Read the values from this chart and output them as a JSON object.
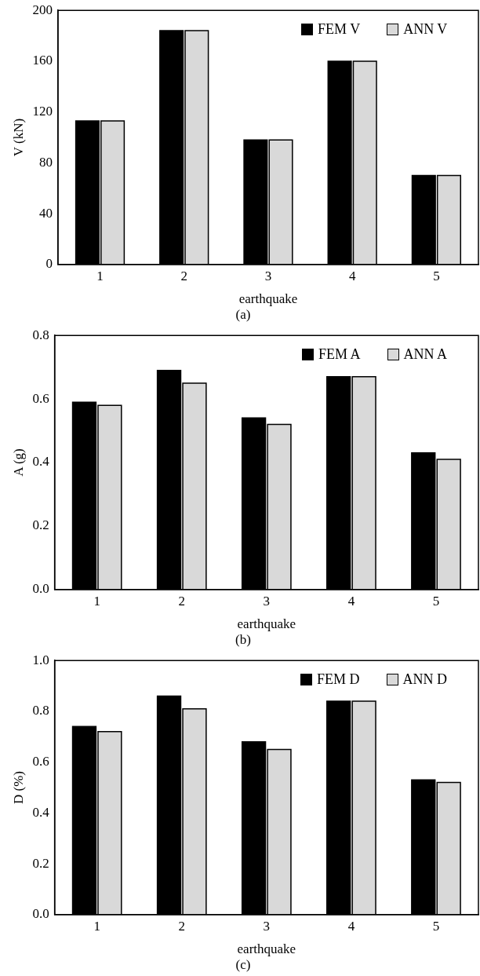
{
  "chart_data": [
    {
      "type": "bar",
      "title": "(a)",
      "xlabel": "earthquake",
      "ylabel": "V (kN)",
      "categories": [
        "1",
        "2",
        "3",
        "4",
        "5"
      ],
      "series": [
        {
          "name": "FEM V",
          "color": "#000000",
          "values": [
            113,
            184,
            98,
            160,
            70
          ]
        },
        {
          "name": "ANN V",
          "color": "#d9d9d9",
          "values": [
            113,
            184,
            98,
            160,
            70
          ]
        }
      ],
      "ylim": [
        0,
        200
      ],
      "yticks": [
        0,
        40,
        80,
        120,
        160,
        200
      ],
      "grid": false,
      "legend": "top right"
    },
    {
      "type": "bar",
      "title": "(b)",
      "xlabel": "earthquake",
      "ylabel": "A (g)",
      "categories": [
        "1",
        "2",
        "3",
        "4",
        "5"
      ],
      "series": [
        {
          "name": "FEM A",
          "color": "#000000",
          "values": [
            0.59,
            0.69,
            0.54,
            0.67,
            0.43
          ]
        },
        {
          "name": "ANN A",
          "color": "#d9d9d9",
          "values": [
            0.58,
            0.65,
            0.52,
            0.67,
            0.41
          ]
        }
      ],
      "ylim": [
        0,
        0.8
      ],
      "yticks": [
        {
          "value": 0,
          "label": "0.0"
        },
        {
          "value": 0.2,
          "label": "0.2"
        },
        {
          "value": 0.4,
          "label": "0.4"
        },
        {
          "value": 0.6,
          "label": "0.6"
        },
        {
          "value": 0.8,
          "label": "0.8"
        }
      ],
      "grid": false,
      "legend": "top right"
    },
    {
      "type": "bar",
      "title": "(c)",
      "xlabel": "earthquake",
      "ylabel": "D (%)",
      "categories": [
        "1",
        "2",
        "3",
        "4",
        "5"
      ],
      "series": [
        {
          "name": "FEM D",
          "color": "#000000",
          "values": [
            0.74,
            0.86,
            0.68,
            0.84,
            0.53
          ]
        },
        {
          "name": "ANN D",
          "color": "#d9d9d9",
          "values": [
            0.72,
            0.81,
            0.65,
            0.84,
            0.52
          ]
        }
      ],
      "ylim": [
        0,
        1.0
      ],
      "yticks": [
        {
          "value": 0,
          "label": "0.0"
        },
        {
          "value": 0.2,
          "label": "0.2"
        },
        {
          "value": 0.4,
          "label": "0.4"
        },
        {
          "value": 0.6,
          "label": "0.6"
        },
        {
          "value": 0.8,
          "label": "0.8"
        },
        {
          "value": 1.0,
          "label": "1.0"
        }
      ],
      "grid": false,
      "legend": "top right"
    }
  ]
}
